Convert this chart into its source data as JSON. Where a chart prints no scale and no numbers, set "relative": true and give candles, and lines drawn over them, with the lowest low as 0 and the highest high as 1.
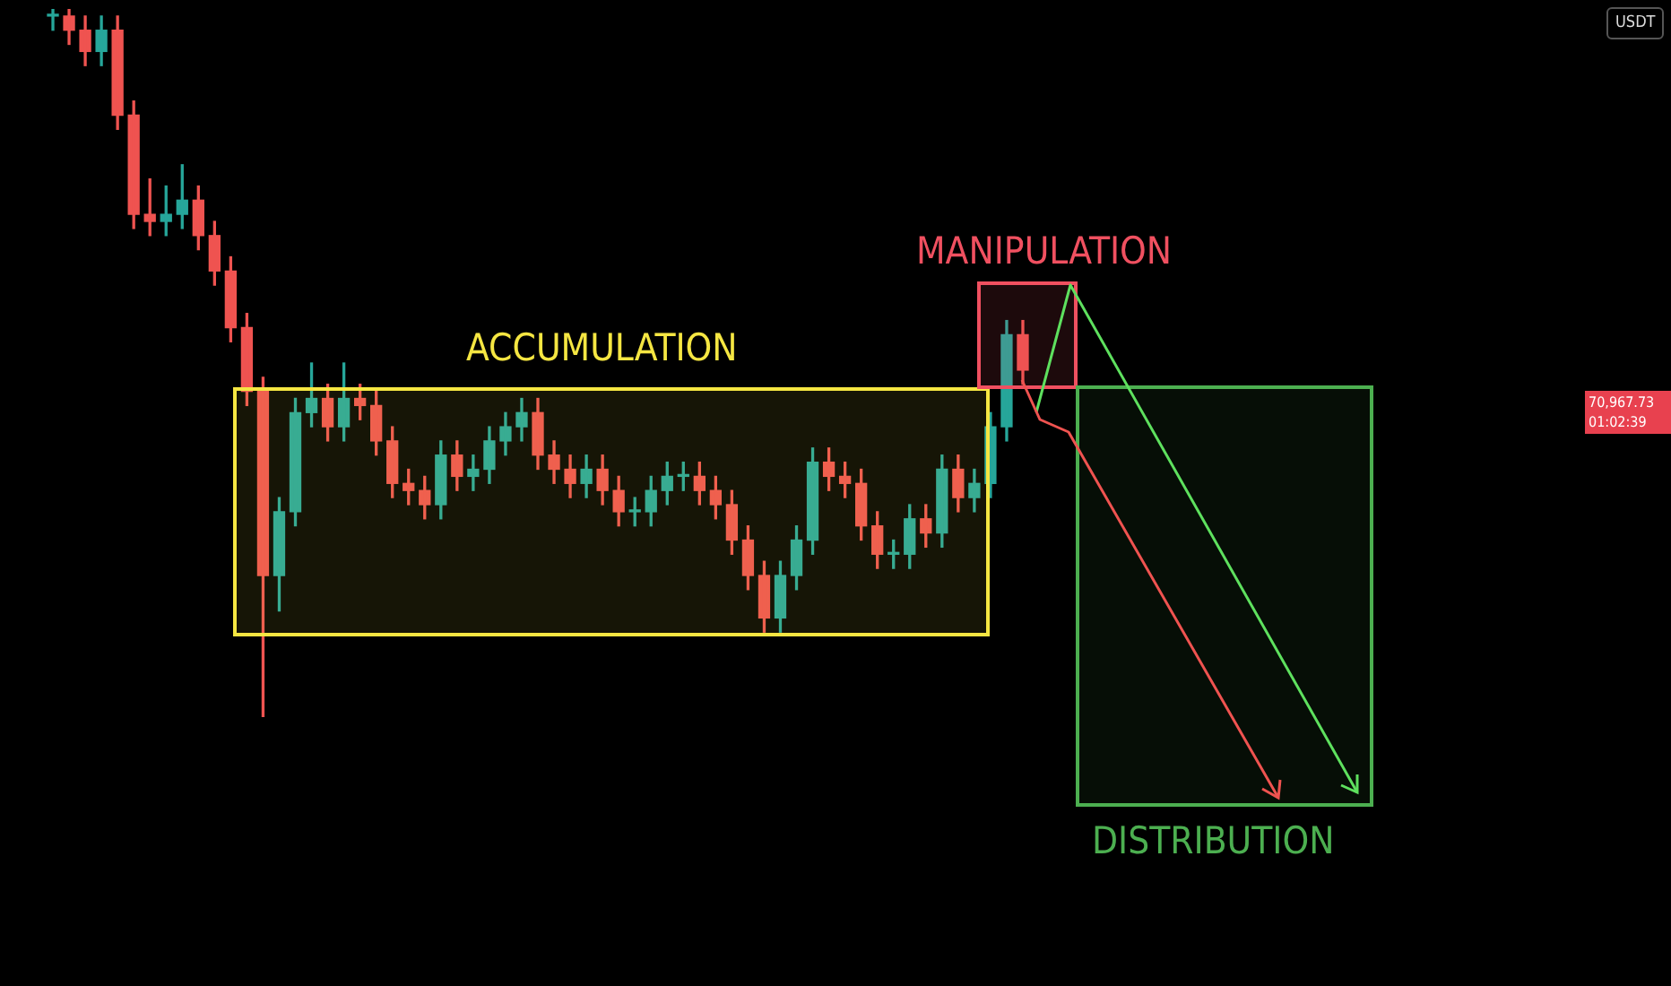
{
  "chart_data": {
    "type": "candlestick",
    "relative": true,
    "legend": false,
    "grid": false,
    "tick_labels": false,
    "categories": [
      null,
      null,
      null,
      null,
      null,
      null,
      null,
      null,
      null,
      null,
      null,
      null,
      null,
      null,
      null,
      null,
      null,
      null,
      null,
      null,
      null,
      null,
      null,
      null,
      null,
      null,
      null,
      null,
      null,
      null,
      null,
      null,
      null,
      null,
      null,
      null,
      null,
      null,
      null,
      null,
      null,
      null,
      null,
      null,
      null,
      null,
      null,
      null,
      null,
      null,
      null,
      null,
      null,
      null,
      null,
      null,
      null,
      null,
      null,
      null,
      null
    ],
    "ohlc": [
      [
        0.99,
        1,
        0.97,
        0.99
      ],
      [
        0.99,
        1,
        0.95,
        0.97
      ],
      [
        0.97,
        0.99,
        0.92,
        0.94
      ],
      [
        0.94,
        0.99,
        0.92,
        0.97
      ],
      [
        0.97,
        0.99,
        0.83,
        0.85
      ],
      [
        0.85,
        0.87,
        0.69,
        0.71
      ],
      [
        0.71,
        0.76,
        0.68,
        0.7
      ],
      [
        0.7,
        0.75,
        0.68,
        0.71
      ],
      [
        0.71,
        0.78,
        0.69,
        0.73
      ],
      [
        0.73,
        0.75,
        0.66,
        0.68
      ],
      [
        0.68,
        0.7,
        0.61,
        0.63
      ],
      [
        0.63,
        0.65,
        0.53,
        0.55
      ],
      [
        0.55,
        0.57,
        0.44,
        0.46
      ],
      [
        0.46,
        0.48,
        0,
        0.2
      ],
      [
        0.2,
        0.31,
        0.15,
        0.29
      ],
      [
        0.29,
        0.45,
        0.27,
        0.43
      ],
      [
        0.43,
        0.5,
        0.41,
        0.45
      ],
      [
        0.45,
        0.47,
        0.39,
        0.41
      ],
      [
        0.41,
        0.5,
        0.39,
        0.45
      ],
      [
        0.45,
        0.47,
        0.42,
        0.44
      ],
      [
        0.44,
        0.46,
        0.37,
        0.39
      ],
      [
        0.39,
        0.41,
        0.31,
        0.33
      ],
      [
        0.33,
        0.35,
        0.3,
        0.32
      ],
      [
        0.32,
        0.34,
        0.28,
        0.3
      ],
      [
        0.3,
        0.39,
        0.28,
        0.37
      ],
      [
        0.37,
        0.39,
        0.32,
        0.34
      ],
      [
        0.34,
        0.37,
        0.32,
        0.35
      ],
      [
        0.35,
        0.41,
        0.33,
        0.39
      ],
      [
        0.39,
        0.43,
        0.37,
        0.41
      ],
      [
        0.41,
        0.45,
        0.39,
        0.43
      ],
      [
        0.43,
        0.45,
        0.35,
        0.37
      ],
      [
        0.37,
        0.39,
        0.33,
        0.35
      ],
      [
        0.35,
        0.37,
        0.31,
        0.33
      ],
      [
        0.33,
        0.37,
        0.31,
        0.35
      ],
      [
        0.35,
        0.37,
        0.3,
        0.32
      ],
      [
        0.32,
        0.34,
        0.27,
        0.29
      ],
      [
        0.29,
        0.31,
        0.27,
        0.29
      ],
      [
        0.29,
        0.34,
        0.27,
        0.32
      ],
      [
        0.32,
        0.36,
        0.3,
        0.34
      ],
      [
        0.34,
        0.36,
        0.32,
        0.34
      ],
      [
        0.34,
        0.36,
        0.3,
        0.32
      ],
      [
        0.32,
        0.34,
        0.28,
        0.3
      ],
      [
        0.3,
        0.32,
        0.23,
        0.25
      ],
      [
        0.25,
        0.27,
        0.18,
        0.2
      ],
      [
        0.2,
        0.22,
        0.12,
        0.14
      ],
      [
        0.14,
        0.22,
        0.12,
        0.2
      ],
      [
        0.2,
        0.27,
        0.18,
        0.25
      ],
      [
        0.25,
        0.38,
        0.23,
        0.36
      ],
      [
        0.36,
        0.38,
        0.32,
        0.34
      ],
      [
        0.34,
        0.36,
        0.31,
        0.33
      ],
      [
        0.33,
        0.35,
        0.25,
        0.27
      ],
      [
        0.27,
        0.29,
        0.21,
        0.23
      ],
      [
        0.23,
        0.25,
        0.21,
        0.23
      ],
      [
        0.23,
        0.3,
        0.21,
        0.28
      ],
      [
        0.28,
        0.3,
        0.24,
        0.26
      ],
      [
        0.26,
        0.37,
        0.24,
        0.35
      ],
      [
        0.35,
        0.37,
        0.29,
        0.31
      ],
      [
        0.31,
        0.35,
        0.29,
        0.33
      ],
      [
        0.33,
        0.43,
        0.31,
        0.41
      ],
      [
        0.41,
        0.56,
        0.39,
        0.54
      ],
      [
        0.54,
        0.56,
        0.47,
        0.49
      ]
    ],
    "annotations": [
      "ACCUMULATION",
      "MANIPULATION",
      "DISTRIBUTION",
      "USDT",
      "70,967.73",
      "01:02:39"
    ]
  }
}
